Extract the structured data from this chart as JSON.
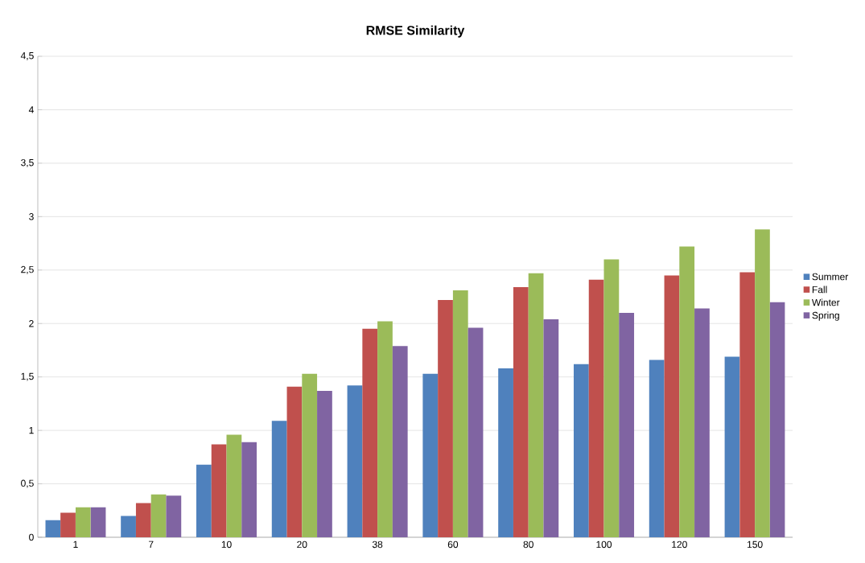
{
  "chart_data": {
    "type": "bar",
    "title": "**RMSE Similarity**",
    "categories": [
      "1",
      "7",
      "10",
      "20",
      "38",
      "60",
      "80",
      "100",
      "120",
      "150"
    ],
    "series": [
      {
        "name": "Summer",
        "color": "#4f81bd",
        "values": [
          0.16,
          0.2,
          0.68,
          1.09,
          1.42,
          1.53,
          1.58,
          1.62,
          1.66,
          1.69
        ]
      },
      {
        "name": "Fall",
        "color": "#c0504d",
        "values": [
          0.23,
          0.32,
          0.87,
          1.41,
          1.95,
          2.22,
          2.34,
          2.41,
          2.45,
          2.48
        ]
      },
      {
        "name": "Winter",
        "color": "#9bbb59",
        "values": [
          0.28,
          0.4,
          0.96,
          1.53,
          2.02,
          2.31,
          2.47,
          2.6,
          2.72,
          2.88
        ]
      },
      {
        "name": "Spring",
        "color": "#8064a2",
        "values": [
          0.28,
          0.39,
          0.89,
          1.37,
          1.79,
          1.96,
          2.04,
          2.1,
          2.14,
          2.2
        ]
      }
    ],
    "ylim": [
      0,
      4.5
    ],
    "yticks": [
      0,
      {
        "value": 0.5,
        "label": "0,5"
      },
      1,
      {
        "value": 1.5,
        "label": "1,5"
      },
      2,
      {
        "value": 2.5,
        "label": "2,5"
      },
      3,
      {
        "value": 3.5,
        "label": "3,5"
      },
      4,
      {
        "value": 4.5,
        "label": "4,5"
      }
    ],
    "grid": "y",
    "legend": "right"
  }
}
